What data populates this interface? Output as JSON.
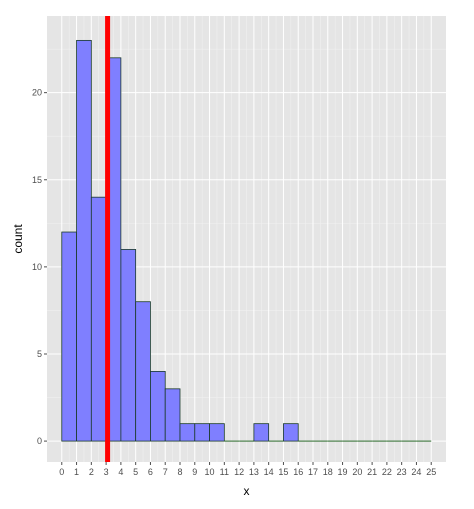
{
  "chart_data": {
    "type": "bar",
    "subtype": "histogram",
    "xlabel": "x",
    "ylabel": "count",
    "bins": [
      0,
      1,
      2,
      3,
      4,
      5,
      6,
      7,
      8,
      9,
      10,
      11,
      12,
      13,
      14,
      15,
      16,
      17,
      18,
      19,
      20,
      21,
      22,
      23,
      24,
      25
    ],
    "counts": [
      12,
      23,
      14,
      22,
      11,
      8,
      4,
      3,
      1,
      1,
      1,
      0,
      0,
      1,
      0,
      1,
      0,
      0,
      0,
      0,
      0,
      0,
      0,
      0,
      0
    ],
    "x_ticks": [
      "0",
      "1",
      "2",
      "3",
      "4",
      "5",
      "6",
      "7",
      "8",
      "9",
      "10",
      "11",
      "12",
      "13",
      "14",
      "15",
      "16",
      "17",
      "18",
      "19",
      "20",
      "21",
      "22",
      "23",
      "24",
      "25"
    ],
    "y_ticks": [
      "0",
      "5",
      "10",
      "15",
      "20"
    ],
    "xlim": [
      -1,
      26
    ],
    "ylim": [
      -1.2,
      24.4
    ],
    "reference_line": {
      "x": 3.1,
      "color": "#ff0000"
    },
    "bar_fill": "#7f7fff",
    "bar_stroke": "#1a3a2a",
    "panel_background": "#e5e5e5",
    "grid": true
  }
}
